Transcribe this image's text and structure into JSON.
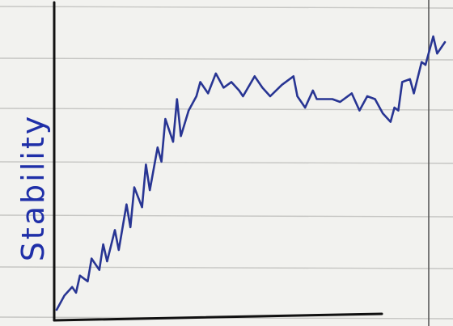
{
  "chart_data": {
    "type": "line",
    "title": "",
    "xlabel": "",
    "ylabel": "Stability",
    "grid": true,
    "ylim": [
      0,
      100
    ],
    "x": [
      0,
      2,
      4,
      5,
      6,
      8,
      9,
      11,
      12,
      13,
      15,
      16,
      18,
      19,
      20,
      22,
      23,
      24,
      26,
      27,
      28,
      30,
      31,
      32,
      34,
      36,
      37,
      39,
      41,
      43,
      45,
      47,
      48,
      51,
      53,
      55,
      58,
      61,
      62,
      64,
      66,
      67,
      71,
      73,
      76,
      78,
      80,
      82,
      84,
      86,
      87,
      88,
      89,
      91,
      92,
      94,
      95,
      97,
      98,
      100
    ],
    "series": [
      {
        "color": "#283593",
        "values": [
          2,
          7,
          10,
          8,
          14,
          12,
          20,
          16,
          25,
          19,
          30,
          23,
          39,
          31,
          45,
          38,
          53,
          44,
          59,
          54,
          69,
          61,
          76,
          63,
          72,
          77,
          82,
          78,
          85,
          80,
          82,
          79,
          77,
          84,
          80,
          77,
          81,
          84,
          77,
          73,
          79,
          76,
          76,
          75,
          78,
          72,
          77,
          76,
          71,
          68,
          73,
          72,
          82,
          83,
          78,
          89,
          88,
          98,
          92,
          96
        ]
      }
    ]
  }
}
